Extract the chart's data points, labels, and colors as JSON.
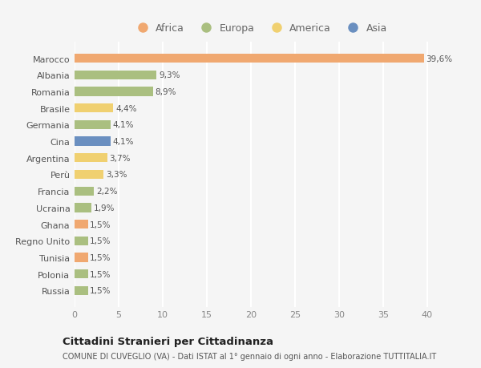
{
  "countries": [
    "Marocco",
    "Albania",
    "Romania",
    "Brasile",
    "Germania",
    "Cina",
    "Argentina",
    "Perù",
    "Francia",
    "Ucraina",
    "Ghana",
    "Regno Unito",
    "Tunisia",
    "Polonia",
    "Russia"
  ],
  "values": [
    39.6,
    9.3,
    8.9,
    4.4,
    4.1,
    4.1,
    3.7,
    3.3,
    2.2,
    1.9,
    1.5,
    1.5,
    1.5,
    1.5,
    1.5
  ],
  "bar_colors": [
    "#F0A870",
    "#AABF80",
    "#AABF80",
    "#F0D070",
    "#AABF80",
    "#6A8FC0",
    "#F0D070",
    "#F0D070",
    "#AABF80",
    "#AABF80",
    "#F0A870",
    "#AABF80",
    "#F0A870",
    "#AABF80",
    "#AABF80"
  ],
  "legend": [
    {
      "label": "Africa",
      "color": "#F0A870"
    },
    {
      "label": "Europa",
      "color": "#AABF80"
    },
    {
      "label": "America",
      "color": "#F0D070"
    },
    {
      "label": "Asia",
      "color": "#6A8FC0"
    }
  ],
  "title": "Cittadini Stranieri per Cittadinanza",
  "subtitle": "COMUNE DI CUVEGLIO (VA) - Dati ISTAT al 1° gennaio di ogni anno - Elaborazione TUTTITALIA.IT",
  "xlim": [
    0,
    42
  ],
  "xticks": [
    0,
    5,
    10,
    15,
    20,
    25,
    30,
    35,
    40
  ],
  "background_color": "#f5f5f5",
  "grid_color": "#ffffff"
}
